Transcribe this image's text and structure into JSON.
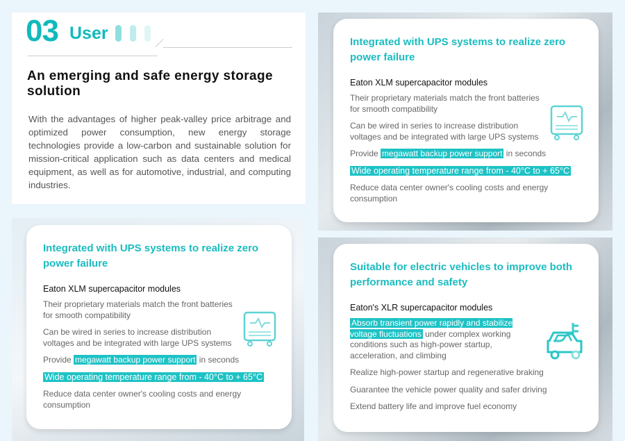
{
  "section": {
    "number": "03",
    "label": "User",
    "heading": "An emerging and safe energy storage solution",
    "description": "With the advantages of higher peak-valley price arbitrage and optimized power consumption, new energy storage technologies provide a low-carbon and sustainable solution for mission-critical application such as data centers and medical equipment, as well as for automotive, industrial, and computing industries."
  },
  "accent": "#12b9bb",
  "ups_card": {
    "title": "Integrated with UPS systems to realize zero power failure",
    "subtitle": "Eaton XLM supercapacitor modules",
    "item1": "Their proprietary materials match the front batteries for smooth compatibility",
    "item2": "Can be wired in series to increase distribution voltages and be integrated with large UPS systems",
    "item3_pre": "Provide ",
    "item3_hl": "megawatt backup power support",
    "item3_post": " in seconds",
    "item4_hl": "Wide operating temperature range from - 40°C to + 65°C",
    "item5": "Reduce data center owner's cooling costs and energy consumption",
    "icon": "ups-monitor-icon"
  },
  "ev_card": {
    "title": "Suitable for electric vehicles to improve both performance and safety",
    "subtitle": "Eaton's XLR supercapacitor modules",
    "item1_hl": "Absorb transient power rapidly and stabilize voltage fluctuations",
    "item1_post": " under complex working conditions such as high-power startup, acceleration, and climbing",
    "item2": "Realize high-power startup and regenerative braking",
    "item3": "Guarantee the vehicle power quality and safer driving",
    "item4": "Extend battery life and improve fuel economy",
    "icon": "electric-car-icon"
  }
}
